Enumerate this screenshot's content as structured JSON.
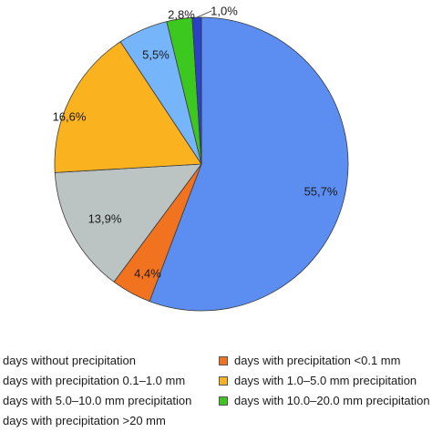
{
  "chart_data": {
    "type": "pie",
    "slices": [
      {
        "label": "days without precipitation",
        "value": 55.7,
        "value_label": "55,7%",
        "color": "#5b8ef0"
      },
      {
        "label": "days with precipitation <0.1 mm",
        "value": 4.4,
        "value_label": "4,4%",
        "color": "#f2731f"
      },
      {
        "label": "days with precipitation 0.1–1.0 mm",
        "value": 13.9,
        "value_label": "13,9%",
        "color": "#bcc3c3"
      },
      {
        "label": "days with 1.0–5.0 mm precipitation",
        "value": 16.6,
        "value_label": "16,6%",
        "color": "#fab31e"
      },
      {
        "label": "days with 5.0–10.0 mm precipitation",
        "value": 5.5,
        "value_label": "5,5%",
        "color": "#77b5fa"
      },
      {
        "label": "days with 10.0–20.0 mm precipitation",
        "value": 2.8,
        "value_label": "2,8%",
        "color": "#3cc81e"
      },
      {
        "label": "days with precipitation >20 mm",
        "value": 1.0,
        "value_label": "1,0%",
        "color": "#2a42c8"
      }
    ],
    "legend_position": "bottom",
    "start": "top, clockwise"
  },
  "legend": {
    "items": [
      "days without precipitation",
      "days with precipitation <0.1 mm",
      "days with precipitation 0.1–1.0 mm",
      "days with 1.0–5.0 mm precipitation",
      "days with 5.0–10.0 mm precipitation",
      "days with 10.0–20.0 mm precipitation",
      "days with precipitation >20 mm"
    ]
  }
}
